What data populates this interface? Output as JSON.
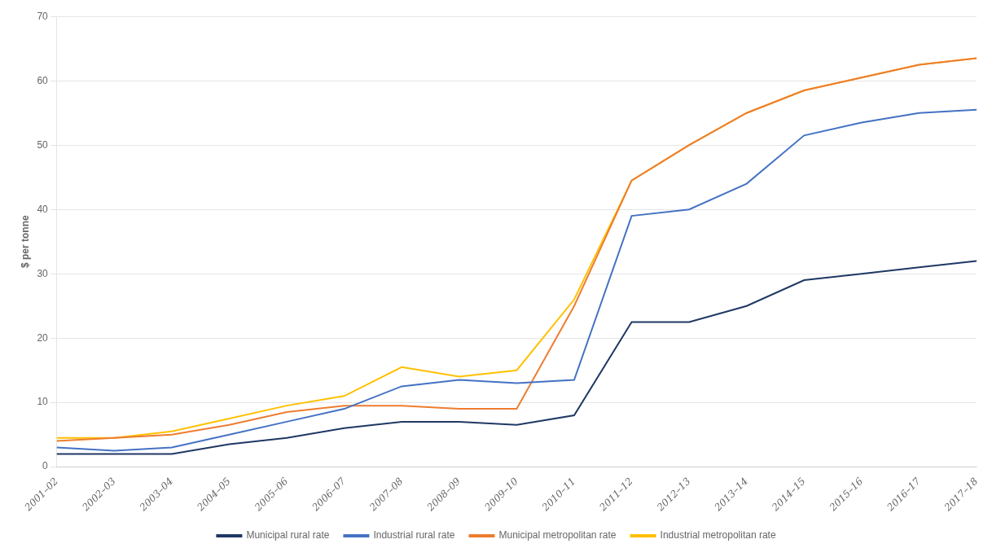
{
  "chart_data": {
    "type": "line",
    "categories": [
      "2001–02",
      "2002–03",
      "2003–04",
      "2004–05",
      "2005–06",
      "2006–07",
      "2007–08",
      "2008–09",
      "2009–10",
      "2010–11",
      "2011–12",
      "2012–13",
      "2013–14",
      "2014–15",
      "2015–16",
      "2016–17",
      "2017–18"
    ],
    "series": [
      {
        "name": "Municipal rural rate",
        "color": "#1f3864",
        "values": [
          2.0,
          2.0,
          2.0,
          3.5,
          4.5,
          6.0,
          7.0,
          7.0,
          6.5,
          8.0,
          22.5,
          22.5,
          25.0,
          29.0,
          30.0,
          31.0,
          32.0
        ]
      },
      {
        "name": "Industrial rural rate",
        "color": "#4472c4",
        "values": [
          3.0,
          2.5,
          3.0,
          5.0,
          7.0,
          9.0,
          12.5,
          13.5,
          13.0,
          13.5,
          39.0,
          40.0,
          44.0,
          51.5,
          53.5,
          55.0,
          55.5
        ]
      },
      {
        "name": "Municipal metropolitan rate",
        "color": "#ed7d31",
        "values": [
          4.0,
          4.5,
          5.0,
          6.5,
          8.5,
          9.5,
          9.5,
          9.0,
          9.0,
          25.0,
          44.5,
          50.0,
          55.0,
          58.5,
          60.5,
          62.5,
          63.5
        ]
      },
      {
        "name": "Industrial metropolitan rate",
        "color": "#ffc000",
        "values": [
          4.5,
          4.5,
          5.5,
          7.5,
          9.5,
          11.0,
          15.5,
          14.0,
          15.0,
          26.0,
          44.5,
          50.0,
          55.0,
          58.5,
          60.5,
          62.5,
          63.5
        ]
      }
    ],
    "ylabel": "$ per tonne",
    "ylim": [
      0,
      70
    ],
    "yticks": [
      0,
      10,
      20,
      30,
      40,
      50,
      60,
      70
    ],
    "grid": true,
    "legend": "bottom"
  }
}
